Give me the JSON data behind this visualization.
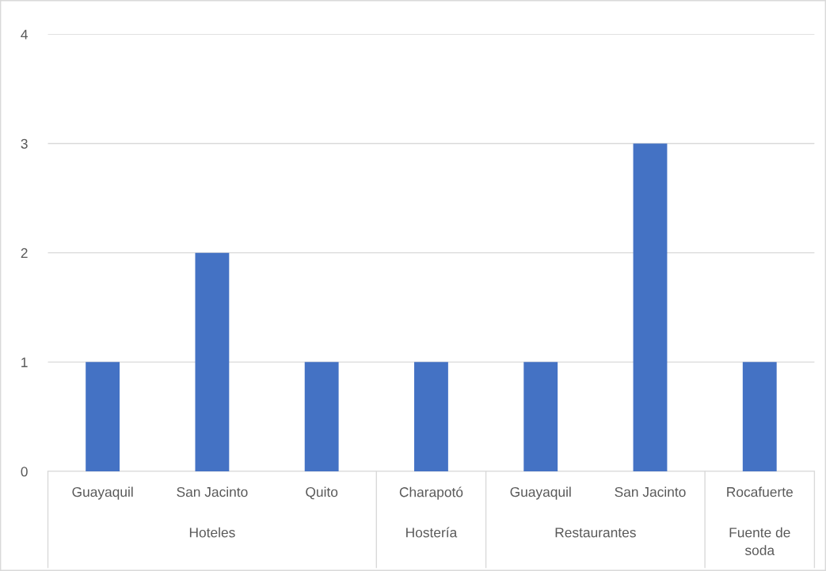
{
  "chart_data": {
    "type": "bar",
    "categories": [
      "Guayaquil",
      "San Jacinto",
      "Quito",
      "Charapotó",
      "Guayaquil",
      "San Jacinto",
      "Rocafuerte"
    ],
    "values": [
      1,
      2,
      1,
      1,
      1,
      3,
      1
    ],
    "color": "#4472c4",
    "ylim": [
      0,
      4
    ],
    "yticks": [
      0,
      1,
      2,
      3,
      4
    ],
    "grid": "y",
    "annotations": [
      "Hoteles",
      "Hostería",
      "Restaurantes",
      "Fuente de soda"
    ]
  }
}
